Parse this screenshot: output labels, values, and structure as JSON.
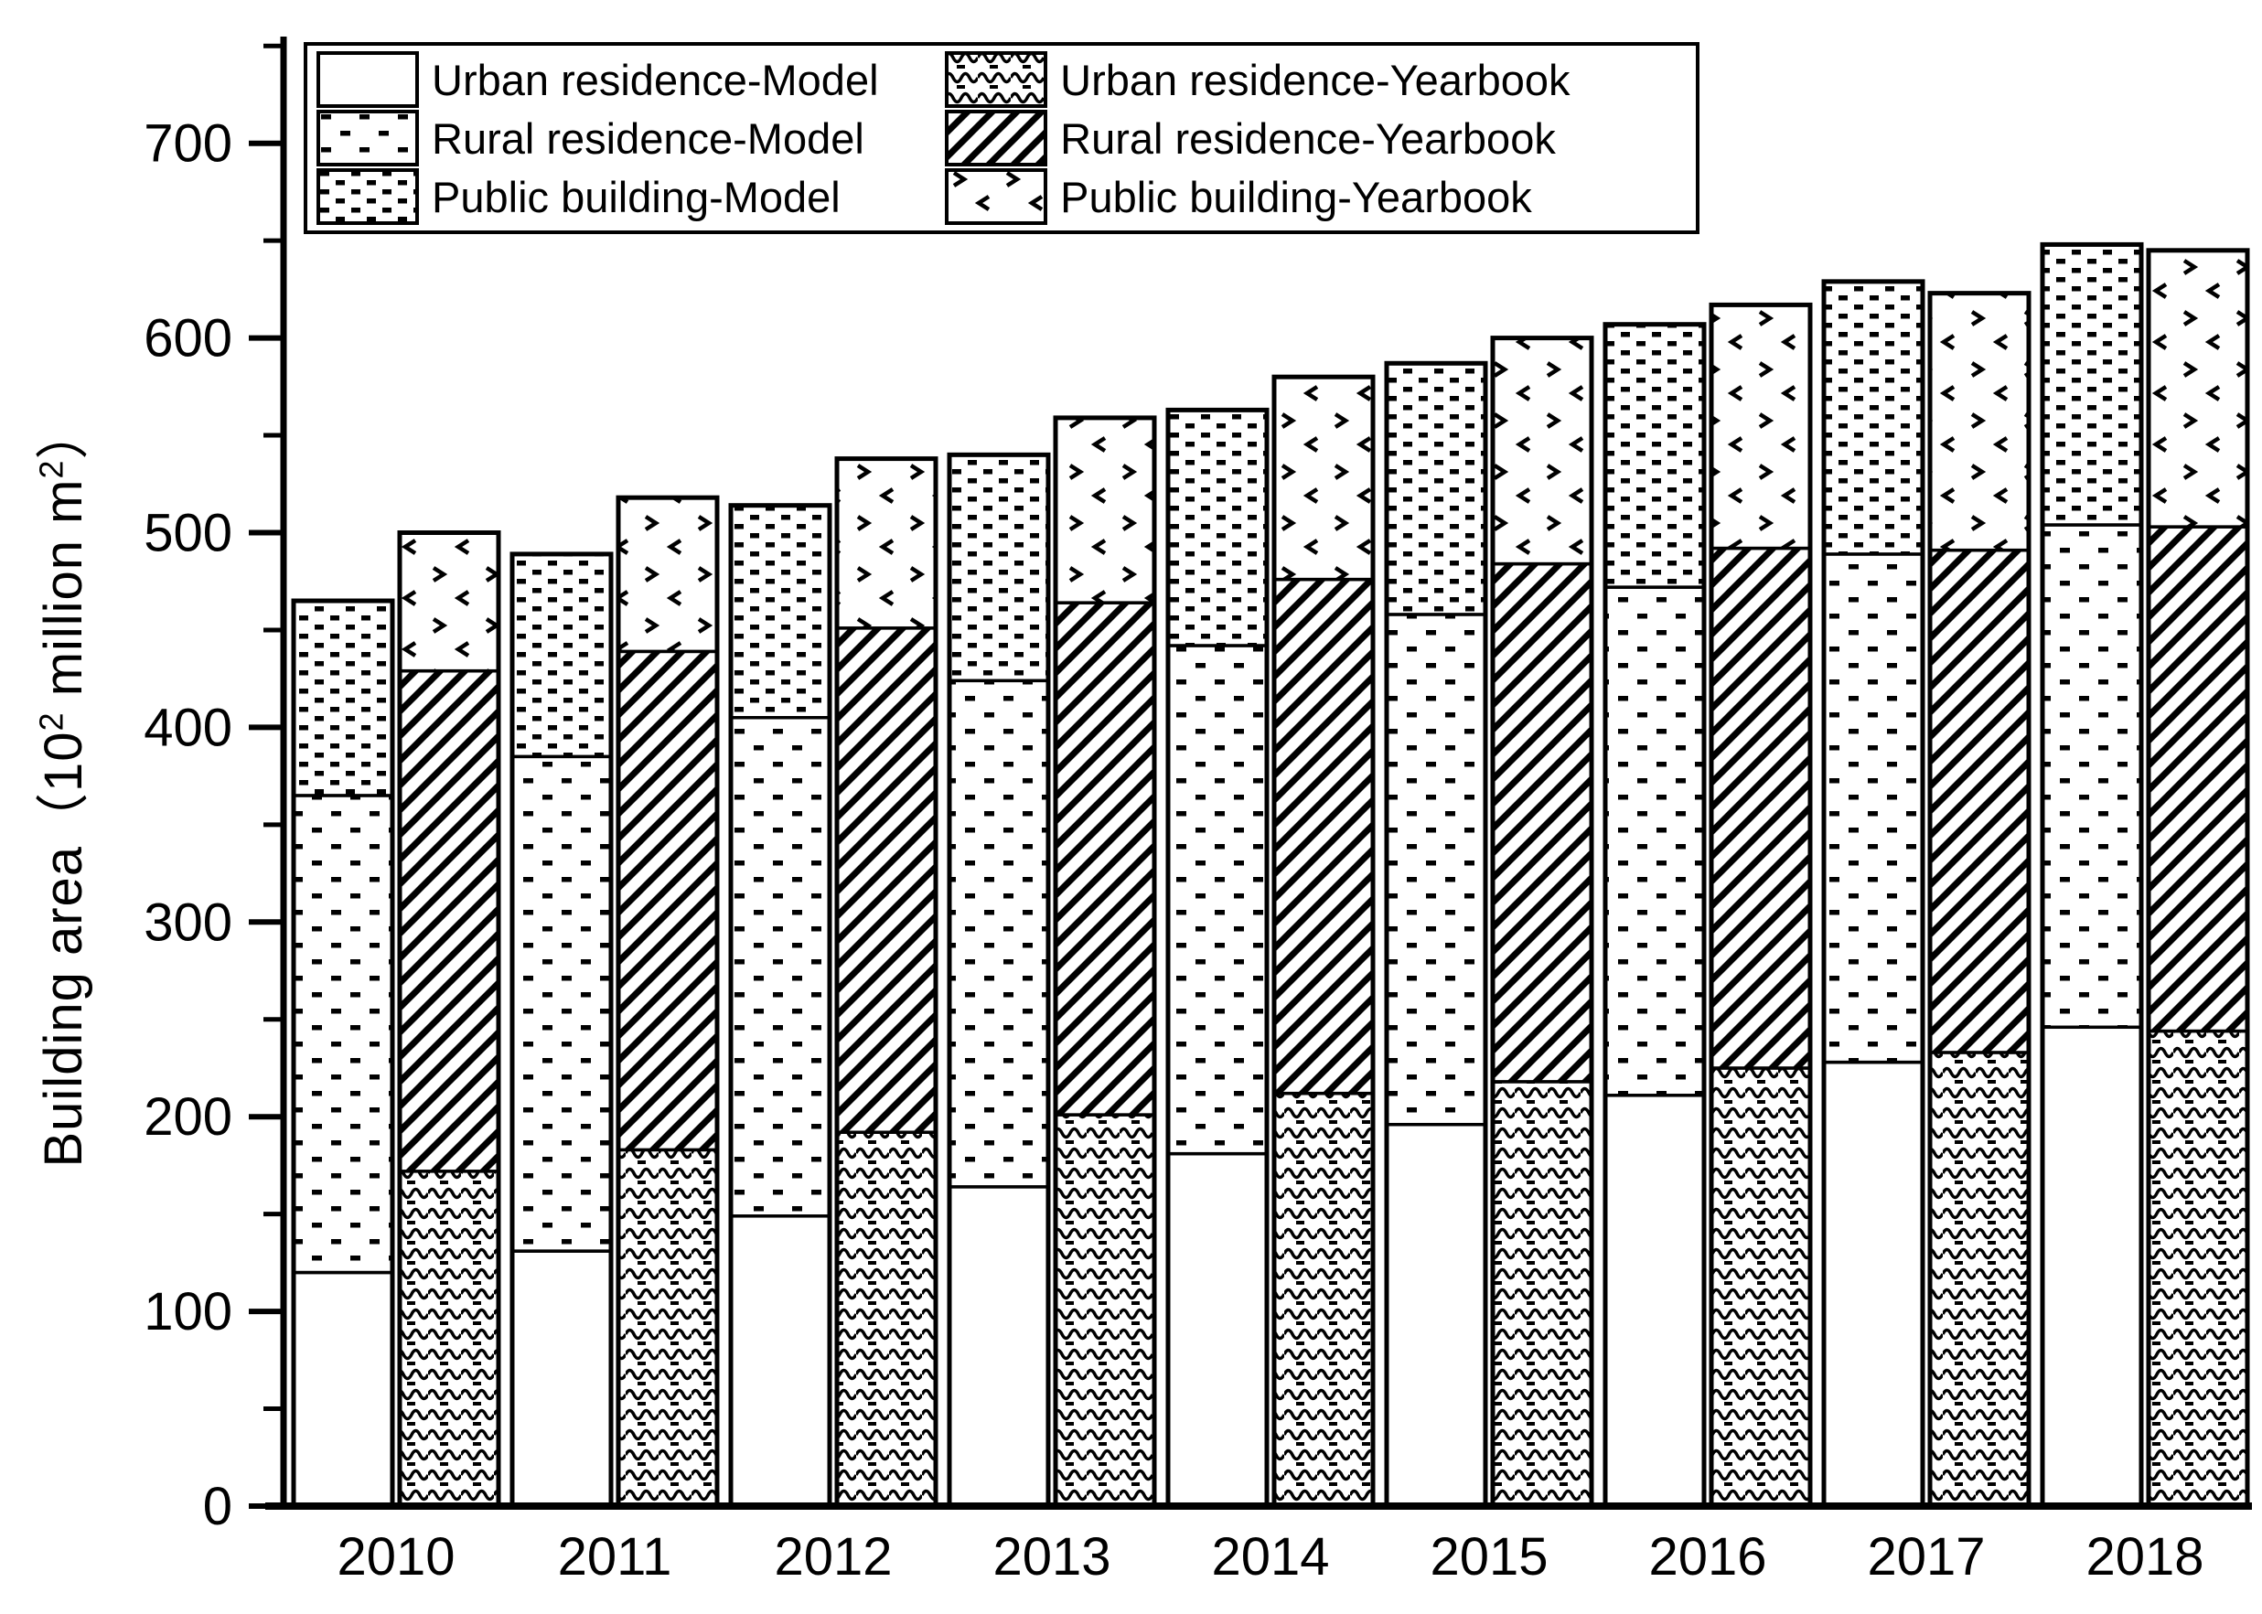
{
  "page": {
    "background": "#ffffff",
    "foreground": "#000000"
  },
  "chart_data": {
    "type": "bar",
    "variant": "grouped-stacked",
    "title": "",
    "categories": [
      "2010",
      "2011",
      "2012",
      "2013",
      "2014",
      "2015",
      "2016",
      "2017",
      "2018"
    ],
    "group_names": [
      "Model",
      "Yearbook"
    ],
    "stack_order": [
      "Urban residence",
      "Rural residence",
      "Public building"
    ],
    "series": [
      {
        "name": "Urban residence-Model",
        "group": "Model",
        "pattern": "solid-white",
        "values": [
          120,
          131,
          149,
          164,
          181,
          196,
          211,
          228,
          246
        ]
      },
      {
        "name": "Rural residence-Model",
        "group": "Model",
        "pattern": "sparse-dots",
        "values": [
          245,
          254,
          256,
          260,
          261,
          262,
          261,
          261,
          258
        ]
      },
      {
        "name": "Public building-Model",
        "group": "Model",
        "pattern": "dense-dots",
        "values": [
          100,
          104,
          109,
          116,
          121,
          129,
          135,
          140,
          144
        ]
      },
      {
        "name": "Urban residence-Yearbook",
        "group": "Yearbook",
        "pattern": "horizontal-waves",
        "values": [
          172,
          183,
          192,
          201,
          212,
          218,
          225,
          233,
          244
        ]
      },
      {
        "name": "Rural residence-Yearbook",
        "group": "Yearbook",
        "pattern": "diagonal-hatch",
        "values": [
          257,
          256,
          259,
          263,
          264,
          266,
          267,
          258,
          259
        ]
      },
      {
        "name": "Public building-Yearbook",
        "group": "Yearbook",
        "pattern": "sparse-chevrons",
        "values": [
          71,
          79,
          87,
          95,
          104,
          116,
          125,
          132,
          142
        ]
      }
    ],
    "stack_totals": {
      "Model": [
        465,
        489,
        514,
        540,
        563,
        587,
        607,
        629,
        648
      ],
      "Yearbook": [
        500,
        518,
        538,
        559,
        580,
        600,
        617,
        623,
        645
      ]
    },
    "xlabel": "",
    "ylabel": "Building area（10² million m²）",
    "ylabel_parts": {
      "p1": "Building area（10",
      "sup1": "2",
      "p2": " million m",
      "sup2": "2",
      "p3": "）"
    },
    "ylim": [
      0,
      700
    ],
    "yticks": [
      "0",
      "100",
      "200",
      "300",
      "400",
      "500",
      "600",
      "700"
    ],
    "ytick_step": 100,
    "ytick_minor_step": 50,
    "grid": false,
    "legend_position": "top-left",
    "bar_outline_color": "#000000",
    "bar_fill_background": "#ffffff"
  }
}
